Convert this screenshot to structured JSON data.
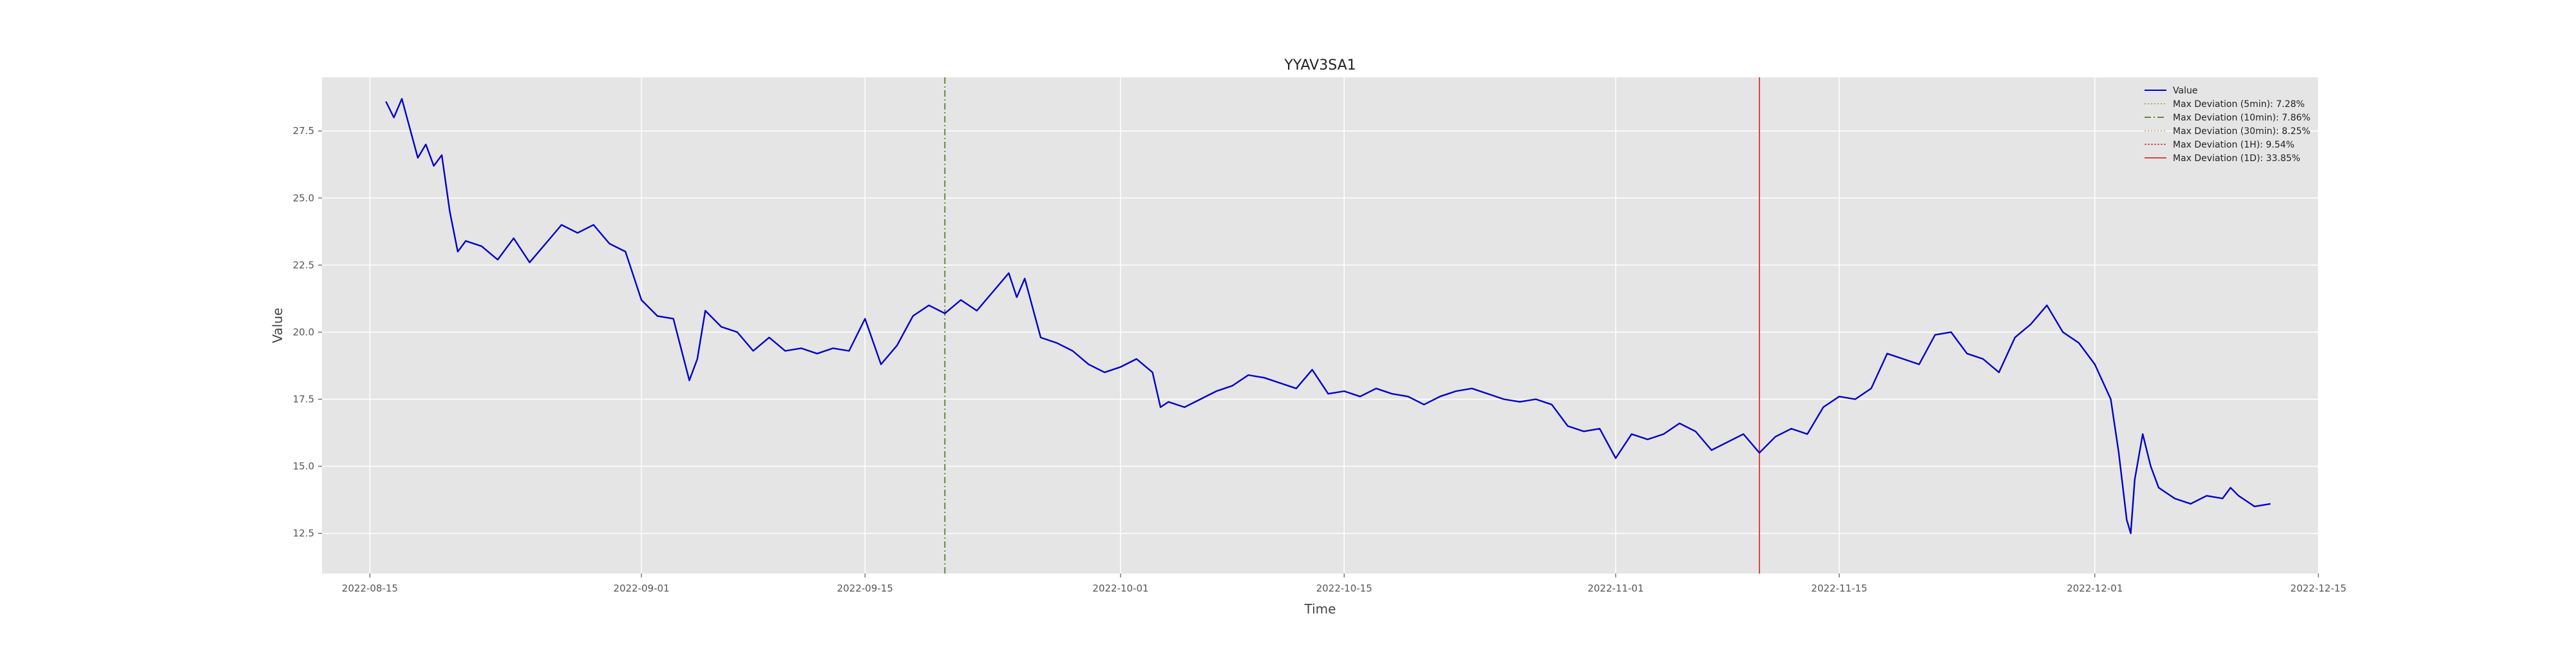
{
  "chart_data": {
    "type": "line",
    "title": "YYAV3SA1",
    "xlabel": "Time",
    "ylabel": "Value",
    "x_range": [
      "2022-08-12",
      "2022-12-15"
    ],
    "ylim": [
      11.0,
      29.5
    ],
    "x_ticks": [
      "2022-08-15",
      "2022-09-01",
      "2022-09-15",
      "2022-10-01",
      "2022-10-15",
      "2022-11-01",
      "2022-11-15",
      "2022-12-01",
      "2022-12-15"
    ],
    "y_ticks": [
      "12.5",
      "15.0",
      "17.5",
      "20.0",
      "22.5",
      "25.0",
      "27.5"
    ],
    "grid": true,
    "legend_position": "top-right",
    "series": [
      {
        "name": "Value",
        "color": "#0000cc",
        "points": [
          [
            "2022-08-16",
            28.6
          ],
          [
            "2022-08-16T12:00",
            28.0
          ],
          [
            "2022-08-17",
            28.7
          ],
          [
            "2022-08-17T12:00",
            27.6
          ],
          [
            "2022-08-18",
            26.5
          ],
          [
            "2022-08-18T12:00",
            27.0
          ],
          [
            "2022-08-19",
            26.2
          ],
          [
            "2022-08-19T12:00",
            26.6
          ],
          [
            "2022-08-20",
            24.5
          ],
          [
            "2022-08-20T12:00",
            23.0
          ],
          [
            "2022-08-21",
            23.4
          ],
          [
            "2022-08-22",
            23.2
          ],
          [
            "2022-08-23",
            22.7
          ],
          [
            "2022-08-24",
            23.5
          ],
          [
            "2022-08-25",
            22.6
          ],
          [
            "2022-08-26",
            23.3
          ],
          [
            "2022-08-27",
            24.0
          ],
          [
            "2022-08-28",
            23.7
          ],
          [
            "2022-08-29",
            24.0
          ],
          [
            "2022-08-30",
            23.3
          ],
          [
            "2022-08-31",
            23.0
          ],
          [
            "2022-09-01",
            21.2
          ],
          [
            "2022-09-02",
            20.6
          ],
          [
            "2022-09-03",
            20.5
          ],
          [
            "2022-09-04",
            18.2
          ],
          [
            "2022-09-04T12:00",
            19.0
          ],
          [
            "2022-09-05",
            20.8
          ],
          [
            "2022-09-06",
            20.2
          ],
          [
            "2022-09-07",
            20.0
          ],
          [
            "2022-09-08",
            19.3
          ],
          [
            "2022-09-09",
            19.8
          ],
          [
            "2022-09-10",
            19.3
          ],
          [
            "2022-09-11",
            19.4
          ],
          [
            "2022-09-12",
            19.2
          ],
          [
            "2022-09-13",
            19.4
          ],
          [
            "2022-09-14",
            19.3
          ],
          [
            "2022-09-15",
            20.5
          ],
          [
            "2022-09-16",
            18.8
          ],
          [
            "2022-09-17",
            19.5
          ],
          [
            "2022-09-18",
            20.6
          ],
          [
            "2022-09-19",
            21.0
          ],
          [
            "2022-09-20",
            20.7
          ],
          [
            "2022-09-21",
            21.2
          ],
          [
            "2022-09-22",
            20.8
          ],
          [
            "2022-09-23",
            21.5
          ],
          [
            "2022-09-24",
            22.2
          ],
          [
            "2022-09-24T12:00",
            21.3
          ],
          [
            "2022-09-25",
            22.0
          ],
          [
            "2022-09-26",
            19.8
          ],
          [
            "2022-09-27",
            19.6
          ],
          [
            "2022-09-28",
            19.3
          ],
          [
            "2022-09-29",
            18.8
          ],
          [
            "2022-09-30",
            18.5
          ],
          [
            "2022-10-01",
            18.7
          ],
          [
            "2022-10-02",
            19.0
          ],
          [
            "2022-10-03",
            18.5
          ],
          [
            "2022-10-03T12:00",
            17.2
          ],
          [
            "2022-10-04",
            17.4
          ],
          [
            "2022-10-05",
            17.2
          ],
          [
            "2022-10-06",
            17.5
          ],
          [
            "2022-10-07",
            17.8
          ],
          [
            "2022-10-08",
            18.0
          ],
          [
            "2022-10-09",
            18.4
          ],
          [
            "2022-10-10",
            18.3
          ],
          [
            "2022-10-11",
            18.1
          ],
          [
            "2022-10-12",
            17.9
          ],
          [
            "2022-10-13",
            18.6
          ],
          [
            "2022-10-14",
            17.7
          ],
          [
            "2022-10-15",
            17.8
          ],
          [
            "2022-10-16",
            17.6
          ],
          [
            "2022-10-17",
            17.9
          ],
          [
            "2022-10-18",
            17.7
          ],
          [
            "2022-10-19",
            17.6
          ],
          [
            "2022-10-20",
            17.3
          ],
          [
            "2022-10-21",
            17.6
          ],
          [
            "2022-10-22",
            17.8
          ],
          [
            "2022-10-23",
            17.9
          ],
          [
            "2022-10-24",
            17.7
          ],
          [
            "2022-10-25",
            17.5
          ],
          [
            "2022-10-26",
            17.4
          ],
          [
            "2022-10-27",
            17.5
          ],
          [
            "2022-10-28",
            17.3
          ],
          [
            "2022-10-29",
            16.5
          ],
          [
            "2022-10-30",
            16.3
          ],
          [
            "2022-10-31",
            16.4
          ],
          [
            "2022-11-01",
            15.3
          ],
          [
            "2022-11-02",
            16.2
          ],
          [
            "2022-11-03",
            16.0
          ],
          [
            "2022-11-04",
            16.2
          ],
          [
            "2022-11-05",
            16.6
          ],
          [
            "2022-11-06",
            16.3
          ],
          [
            "2022-11-07",
            15.6
          ],
          [
            "2022-11-08",
            15.9
          ],
          [
            "2022-11-09",
            16.2
          ],
          [
            "2022-11-10",
            15.5
          ],
          [
            "2022-11-11",
            16.1
          ],
          [
            "2022-11-12",
            16.4
          ],
          [
            "2022-11-13",
            16.2
          ],
          [
            "2022-11-14",
            17.2
          ],
          [
            "2022-11-15",
            17.6
          ],
          [
            "2022-11-16",
            17.5
          ],
          [
            "2022-11-17",
            17.9
          ],
          [
            "2022-11-18",
            19.2
          ],
          [
            "2022-11-19",
            19.0
          ],
          [
            "2022-11-20",
            18.8
          ],
          [
            "2022-11-21",
            19.9
          ],
          [
            "2022-11-22",
            20.0
          ],
          [
            "2022-11-23",
            19.2
          ],
          [
            "2022-11-24",
            19.0
          ],
          [
            "2022-11-25",
            18.5
          ],
          [
            "2022-11-26",
            19.8
          ],
          [
            "2022-11-27",
            20.3
          ],
          [
            "2022-11-28",
            21.0
          ],
          [
            "2022-11-29",
            20.0
          ],
          [
            "2022-11-30",
            19.6
          ],
          [
            "2022-12-01",
            18.8
          ],
          [
            "2022-12-02",
            17.5
          ],
          [
            "2022-12-02T12:00",
            15.5
          ],
          [
            "2022-12-03",
            13.0
          ],
          [
            "2022-12-03T06:00",
            12.5
          ],
          [
            "2022-12-03T12:00",
            14.5
          ],
          [
            "2022-12-04",
            16.2
          ],
          [
            "2022-12-04T12:00",
            15.0
          ],
          [
            "2022-12-05",
            14.2
          ],
          [
            "2022-12-06",
            13.8
          ],
          [
            "2022-12-07",
            13.6
          ],
          [
            "2022-12-08",
            13.9
          ],
          [
            "2022-12-09",
            13.8
          ],
          [
            "2022-12-09T12:00",
            14.2
          ],
          [
            "2022-12-10",
            13.9
          ],
          [
            "2022-12-11",
            13.5
          ],
          [
            "2022-12-12",
            13.6
          ]
        ]
      }
    ],
    "vlines": [
      {
        "name": "Max Deviation (5min): 7.28%",
        "date": null,
        "color": "#aaaa66",
        "dash": "2,3"
      },
      {
        "name": "Max Deviation (10min): 7.86%",
        "date": "2022-09-20",
        "color": "#668844",
        "dash": "10,4,2,4"
      },
      {
        "name": "Max Deviation (30min): 8.25%",
        "date": null,
        "color": "#bbbb88",
        "dash": "2,3"
      },
      {
        "name": "Max Deviation (1H): 9.54%",
        "date": null,
        "color": "#cc6666",
        "dash": "3,2"
      },
      {
        "name": "Max Deviation (1D): 33.85%",
        "date": "2022-11-10",
        "color": "#dd4444",
        "dash": ""
      }
    ]
  }
}
